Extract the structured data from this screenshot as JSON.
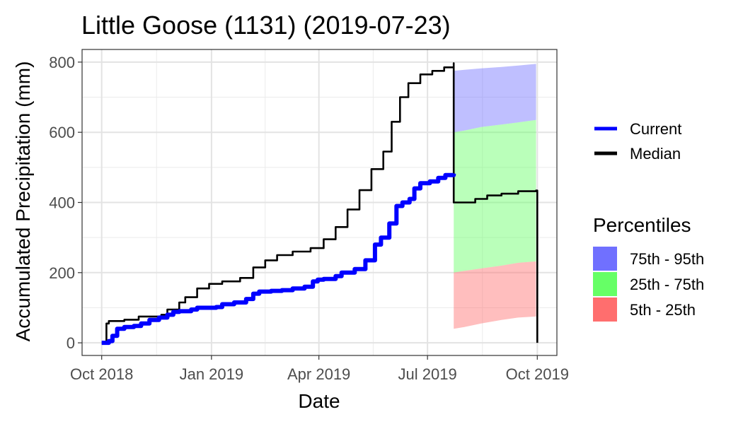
{
  "chart_data": {
    "type": "line",
    "title": "Little Goose (1131) (2019-07-23)",
    "xlabel": "Date",
    "ylabel": "Accumulated Precipitation (mm)",
    "grid": true,
    "legend_position": "right",
    "xlim": [
      "2018-10-01",
      "2019-10-01"
    ],
    "ylim": [
      0,
      800
    ],
    "x_ticks": [
      {
        "date": "2018-10-01",
        "label": "Oct 2018"
      },
      {
        "date": "2019-01-01",
        "label": "Jan 2019"
      },
      {
        "date": "2019-04-01",
        "label": "Apr 2019"
      },
      {
        "date": "2019-07-01",
        "label": "Jul 2019"
      },
      {
        "date": "2019-10-01",
        "label": "Oct 2019"
      }
    ],
    "y_ticks": [
      0,
      200,
      400,
      600,
      800
    ],
    "series": [
      {
        "name": "Current",
        "color": "#0000ff",
        "points": [
          [
            "2018-10-01",
            0
          ],
          [
            "2018-10-05",
            0
          ],
          [
            "2018-10-07",
            5
          ],
          [
            "2018-10-10",
            20
          ],
          [
            "2018-10-14",
            40
          ],
          [
            "2018-10-20",
            45
          ],
          [
            "2018-10-28",
            48
          ],
          [
            "2018-11-03",
            55
          ],
          [
            "2018-11-10",
            65
          ],
          [
            "2018-11-18",
            72
          ],
          [
            "2018-11-25",
            80
          ],
          [
            "2018-11-30",
            88
          ],
          [
            "2018-12-05",
            90
          ],
          [
            "2018-12-15",
            95
          ],
          [
            "2018-12-20",
            100
          ],
          [
            "2019-01-05",
            102
          ],
          [
            "2019-01-10",
            110
          ],
          [
            "2019-01-20",
            115
          ],
          [
            "2019-01-30",
            125
          ],
          [
            "2019-02-05",
            140
          ],
          [
            "2019-02-10",
            146
          ],
          [
            "2019-02-20",
            148
          ],
          [
            "2019-03-01",
            150
          ],
          [
            "2019-03-10",
            155
          ],
          [
            "2019-03-20",
            160
          ],
          [
            "2019-03-27",
            175
          ],
          [
            "2019-03-31",
            180
          ],
          [
            "2019-04-05",
            182
          ],
          [
            "2019-04-15",
            190
          ],
          [
            "2019-04-20",
            200
          ],
          [
            "2019-05-01",
            210
          ],
          [
            "2019-05-10",
            235
          ],
          [
            "2019-05-18",
            280
          ],
          [
            "2019-05-23",
            300
          ],
          [
            "2019-05-30",
            340
          ],
          [
            "2019-06-05",
            390
          ],
          [
            "2019-06-10",
            400
          ],
          [
            "2019-06-16",
            410
          ],
          [
            "2019-06-20",
            440
          ],
          [
            "2019-06-25",
            455
          ],
          [
            "2019-07-03",
            460
          ],
          [
            "2019-07-10",
            470
          ],
          [
            "2019-07-16",
            478
          ],
          [
            "2019-07-23",
            482
          ]
        ]
      },
      {
        "name": "Median",
        "color": "#000000",
        "points": [
          [
            "2018-10-01",
            0
          ],
          [
            "2018-10-04",
            0
          ],
          [
            "2018-10-05",
            55
          ],
          [
            "2018-10-07",
            62
          ],
          [
            "2018-10-20",
            66
          ],
          [
            "2018-11-01",
            75
          ],
          [
            "2018-11-20",
            80
          ],
          [
            "2018-11-25",
            95
          ],
          [
            "2018-12-05",
            115
          ],
          [
            "2018-12-10",
            130
          ],
          [
            "2018-12-20",
            155
          ],
          [
            "2018-12-30",
            168
          ],
          [
            "2019-01-10",
            175
          ],
          [
            "2019-01-25",
            185
          ],
          [
            "2019-02-05",
            215
          ],
          [
            "2019-02-15",
            235
          ],
          [
            "2019-02-25",
            250
          ],
          [
            "2019-03-10",
            260
          ],
          [
            "2019-03-25",
            270
          ],
          [
            "2019-04-05",
            295
          ],
          [
            "2019-04-15",
            330
          ],
          [
            "2019-04-25",
            380
          ],
          [
            "2019-05-05",
            435
          ],
          [
            "2019-05-15",
            495
          ],
          [
            "2019-05-25",
            545
          ],
          [
            "2019-06-01",
            630
          ],
          [
            "2019-06-08",
            700
          ],
          [
            "2019-06-15",
            740
          ],
          [
            "2019-06-25",
            765
          ],
          [
            "2019-07-05",
            775
          ],
          [
            "2019-07-15",
            785
          ],
          [
            "2019-07-23",
            797
          ],
          [
            "2019-07-23",
            400
          ],
          [
            "2019-08-10",
            410
          ],
          [
            "2019-08-20",
            420
          ],
          [
            "2019-09-01",
            425
          ],
          [
            "2019-09-15",
            432
          ],
          [
            "2019-09-30",
            434
          ],
          [
            "2019-10-01",
            0
          ]
        ]
      }
    ],
    "percentile_bands": [
      {
        "name": "75th - 95th",
        "color": "#7070ff",
        "x": [
          "2019-07-23",
          "2019-08-01",
          "2019-08-15",
          "2019-09-01",
          "2019-09-15",
          "2019-09-30"
        ],
        "lower": [
          600,
          605,
          615,
          622,
          628,
          635
        ],
        "upper": [
          775,
          778,
          782,
          786,
          790,
          795
        ]
      },
      {
        "name": "25th - 75th",
        "color": "#66ff66",
        "x": [
          "2019-07-23",
          "2019-08-01",
          "2019-08-15",
          "2019-09-01",
          "2019-09-15",
          "2019-09-30"
        ],
        "lower": [
          200,
          205,
          212,
          220,
          228,
          232
        ],
        "upper": [
          600,
          605,
          615,
          622,
          628,
          635
        ]
      },
      {
        "name": "5th - 25th",
        "color": "#ff6e6e",
        "x": [
          "2019-07-23",
          "2019-08-01",
          "2019-08-15",
          "2019-09-01",
          "2019-09-15",
          "2019-09-30"
        ],
        "lower": [
          40,
          45,
          55,
          65,
          72,
          75
        ],
        "upper": [
          200,
          205,
          212,
          220,
          228,
          232
        ]
      }
    ],
    "legend": {
      "lines": [
        {
          "label": "Current",
          "color": "#0000ff"
        },
        {
          "label": "Median",
          "color": "#000000"
        }
      ],
      "percentiles_title": "Percentiles",
      "percentiles": [
        {
          "label": "75th - 95th",
          "color": "#7070ff"
        },
        {
          "label": "25th - 75th",
          "color": "#66ff66"
        },
        {
          "label": "5th - 25th",
          "color": "#ff6e6e"
        }
      ]
    }
  }
}
